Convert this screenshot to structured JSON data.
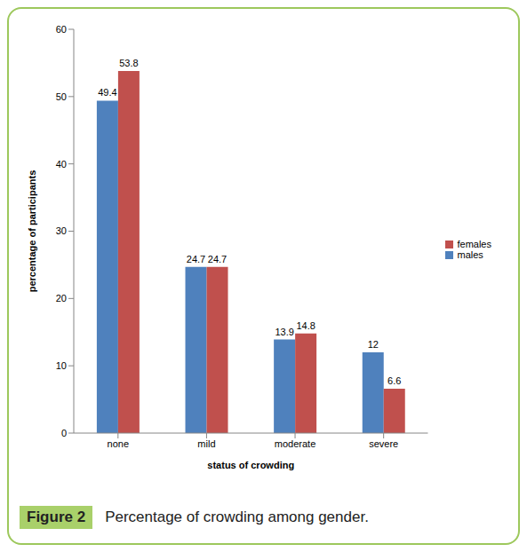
{
  "chart_data": {
    "type": "bar",
    "title": "Percentage of crowding among gender.",
    "figure_label": "Figure 2",
    "x_label": "status of crowding",
    "y_label": "percentage of participants",
    "categories": [
      "none",
      "mild",
      "moderate",
      "severe"
    ],
    "series": [
      {
        "name": "males",
        "color": "#4f81bd",
        "values": [
          49.4,
          24.7,
          13.9,
          12
        ]
      },
      {
        "name": "females",
        "color": "#c0504d",
        "values": [
          53.8,
          24.7,
          14.8,
          6.6
        ]
      }
    ],
    "ylim": [
      0,
      60
    ],
    "yticks": [
      0,
      10,
      20,
      30,
      40,
      50,
      60
    ],
    "grid": false,
    "legend": "right",
    "data_labels": true
  }
}
